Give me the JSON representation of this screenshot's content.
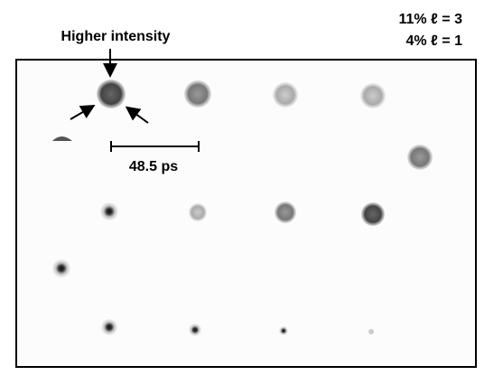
{
  "annotations": {
    "arrow_label": "Higher intensity",
    "scale_bar": "48.5 ps",
    "legend": [
      "11% ℓ = 3",
      "4% ℓ = 1"
    ]
  }
}
